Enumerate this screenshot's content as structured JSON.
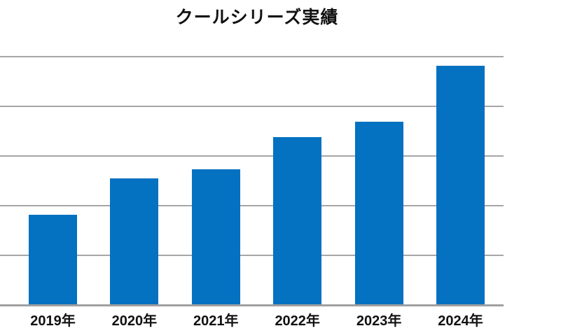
{
  "chart_data": {
    "type": "bar",
    "title": "クールシリーズ実績",
    "categories": [
      "2019年",
      "2020年",
      "2021年",
      "2022年",
      "2023年",
      "2024年"
    ],
    "values": [
      180,
      254,
      272,
      337,
      368,
      480
    ],
    "xlabel": "",
    "ylabel": "",
    "ylim": [
      0,
      500
    ],
    "gridline_step": 100,
    "grid": "horizontal",
    "legend_position": "none",
    "y_tick_labels_visible": false,
    "bar_color": "#0571C1",
    "gridline_color": "#A6A6A6",
    "axis_line_color": "#A0A0A0",
    "text_color": "#111111",
    "background_color": "#FFFFFF"
  }
}
